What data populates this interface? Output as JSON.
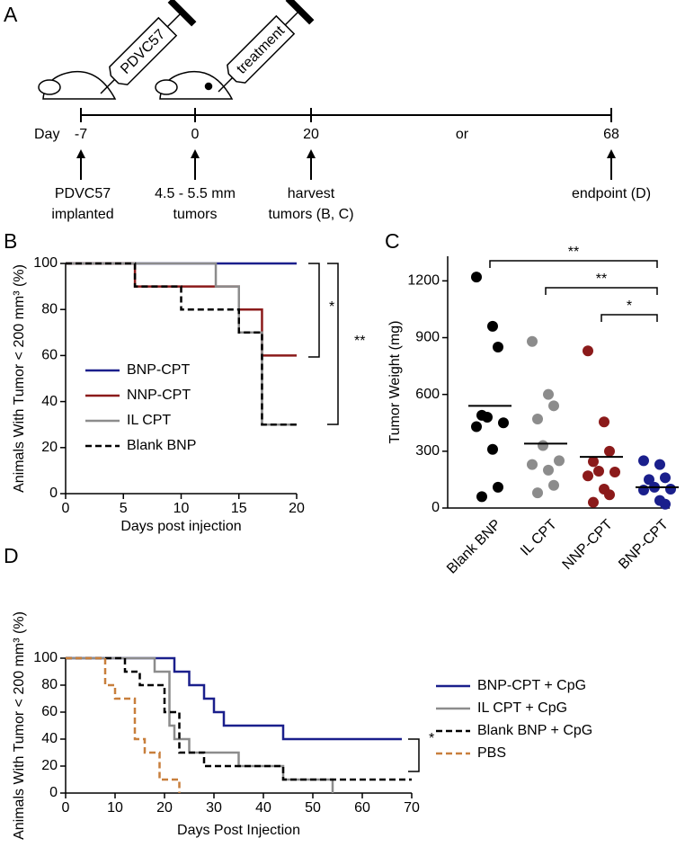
{
  "panel_labels": [
    "A",
    "B",
    "C",
    "D"
  ],
  "timeline": {
    "syringes": [
      "PDVC57",
      "treatment"
    ],
    "day_label": "Day",
    "days": [
      "-7",
      "0",
      "20",
      "68"
    ],
    "or": "or",
    "annotations": [
      [
        "PDVC57",
        "implanted"
      ],
      [
        "4.5 - 5.5 mm",
        "tumors"
      ],
      [
        "harvest",
        "tumors (B, C)"
      ],
      [
        "endpoint (D)"
      ]
    ]
  },
  "chart_data": [
    {
      "type": "step",
      "xlabel": "Days post injection",
      "ylabel": "Animals With Tumor < 200 mm³ (%)",
      "xlim": [
        0,
        20
      ],
      "xticks": [
        0,
        5,
        10,
        15,
        20
      ],
      "ylim": [
        0,
        100
      ],
      "yticks": [
        0,
        20,
        40,
        60,
        80,
        100
      ],
      "legend": "lower left",
      "annotations": [
        "*",
        "**"
      ],
      "series": [
        {
          "name": "BNP-CPT",
          "color": "#1a1f8c",
          "dashed": false,
          "x": [
            0,
            20
          ],
          "values": [
            100,
            100
          ]
        },
        {
          "name": "NNP-CPT",
          "color": "#8b1a1a",
          "dashed": false,
          "x": [
            0,
            6,
            15,
            17,
            20
          ],
          "values": [
            100,
            90,
            80,
            60,
            60
          ]
        },
        {
          "name": "IL CPT",
          "color": "#8c8c8c",
          "dashed": false,
          "x": [
            0,
            13,
            15,
            17,
            20
          ],
          "values": [
            100,
            90,
            70,
            30,
            30
          ]
        },
        {
          "name": "Blank BNP",
          "color": "#000000",
          "dashed": true,
          "x": [
            0,
            6,
            10,
            15,
            17,
            20
          ],
          "values": [
            100,
            90,
            80,
            70,
            30,
            30
          ]
        }
      ]
    },
    {
      "type": "strip",
      "ylabel": "Tumor Weight (mg)",
      "ylim": [
        0,
        1330
      ],
      "yticks": [
        0,
        300,
        600,
        900,
        1200
      ],
      "categories": [
        "Blank BNP",
        "IL CPT",
        "NNP-CPT",
        "BNP-CPT"
      ],
      "annotations": [
        "**",
        "**",
        "*"
      ],
      "series": [
        {
          "color": "#000000",
          "mean": 540,
          "values": [
            1220,
            960,
            850,
            490,
            480,
            450,
            430,
            310,
            110,
            60
          ]
        },
        {
          "color": "#8c8c8c",
          "mean": 340,
          "values": [
            880,
            600,
            540,
            470,
            330,
            250,
            230,
            200,
            120,
            80
          ]
        },
        {
          "color": "#8b1a1a",
          "mean": 270,
          "values": [
            830,
            455,
            300,
            245,
            195,
            190,
            170,
            100,
            70,
            30
          ]
        },
        {
          "color": "#1a1f8c",
          "mean": 110,
          "values": [
            250,
            230,
            160,
            150,
            110,
            100,
            95,
            40,
            20
          ]
        }
      ]
    },
    {
      "type": "step",
      "xlabel": "Days Post Injection",
      "ylabel": "Animals With Tumor < 200 mm³ (%)",
      "xlim": [
        0,
        70
      ],
      "xticks": [
        0,
        10,
        20,
        30,
        40,
        50,
        60,
        70
      ],
      "ylim": [
        0,
        100
      ],
      "yticks": [
        0,
        20,
        40,
        60,
        80,
        100
      ],
      "legend": "right",
      "annotations": [
        "*"
      ],
      "series": [
        {
          "name": "BNP-CPT + CpG",
          "color": "#1a1f8c",
          "dashed": false,
          "x": [
            0,
            22,
            25,
            28,
            30,
            32,
            44,
            68
          ],
          "values": [
            100,
            90,
            80,
            70,
            60,
            50,
            40,
            40
          ]
        },
        {
          "name": "IL CPT + CpG",
          "color": "#8c8c8c",
          "dashed": false,
          "x": [
            0,
            18,
            21,
            22,
            25,
            35,
            44,
            54
          ],
          "values": [
            100,
            90,
            50,
            40,
            30,
            20,
            10,
            0
          ]
        },
        {
          "name": "Blank BNP + CpG",
          "color": "#000000",
          "dashed": true,
          "x": [
            0,
            12,
            15,
            20,
            23,
            28,
            44,
            70
          ],
          "values": [
            100,
            90,
            80,
            60,
            30,
            20,
            10,
            10
          ]
        },
        {
          "name": "PBS",
          "color": "#c87f3c",
          "dashed": true,
          "x": [
            0,
            8,
            10,
            14,
            16,
            19,
            23
          ],
          "values": [
            100,
            80,
            70,
            40,
            30,
            10,
            0
          ]
        }
      ]
    }
  ]
}
